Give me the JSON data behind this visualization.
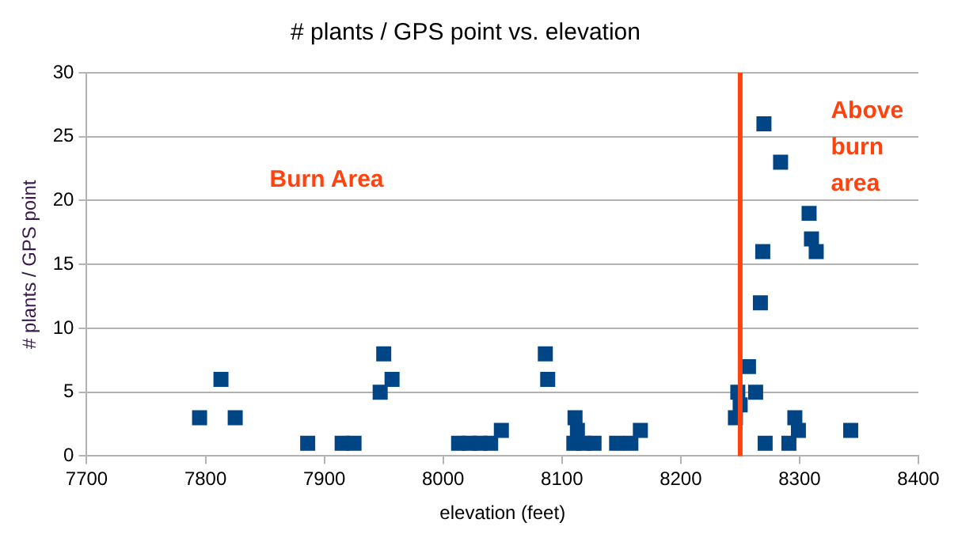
{
  "chart_data": {
    "type": "scatter",
    "title": "# plants / GPS point vs. elevation",
    "xlabel": "elevation (feet)",
    "ylabel": "# plants / GPS point",
    "x": [
      7795,
      7813,
      7825,
      7886,
      7915,
      7925,
      7950,
      7947,
      7957,
      8013,
      8022,
      8031,
      8040,
      8049,
      8086,
      8088,
      8111,
      8113,
      8110,
      8118,
      8127,
      8146,
      8158,
      8166,
      8270,
      8284,
      8308,
      8310,
      8314,
      8269,
      8267,
      8257,
      8248,
      8263,
      8250,
      8246,
      8296,
      8299,
      8343,
      8271,
      8291
    ],
    "values": [
      3,
      6,
      3,
      1,
      1,
      1,
      8,
      5,
      6,
      1,
      1,
      1,
      1,
      2,
      8,
      6,
      3,
      2,
      1,
      1,
      1,
      1,
      1,
      2,
      26,
      23,
      19,
      17,
      16,
      16,
      12,
      7,
      5,
      5,
      4,
      3,
      3,
      2,
      2,
      1,
      1
    ],
    "color": "#004586",
    "marker": "square",
    "xlim": [
      7700,
      8400
    ],
    "xticks": [
      7700,
      7800,
      7900,
      8000,
      8100,
      8200,
      8300,
      8400
    ],
    "ylim": [
      0,
      30
    ],
    "yticks": [
      0,
      5,
      10,
      15,
      20,
      25,
      30
    ],
    "grid": "y",
    "legend": false,
    "ref_lines": [
      {
        "axis": "x",
        "value": 8250,
        "color": "#ff420e"
      }
    ],
    "annotations": [
      "Burn Area",
      "Above burn area"
    ]
  }
}
